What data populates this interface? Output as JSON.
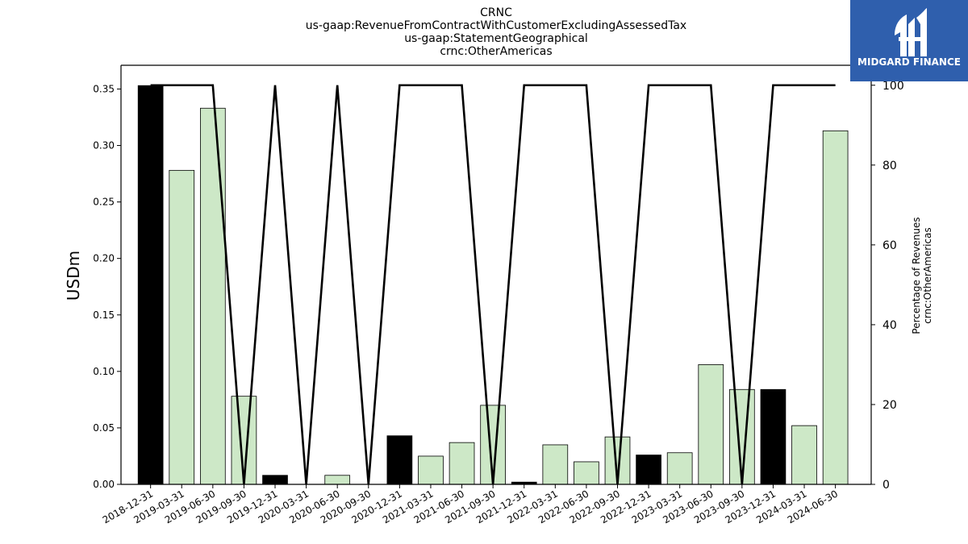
{
  "header": {
    "title_lines": [
      "CRNC",
      "us-gaap:RevenueFromContractWithCustomerExcludingAssessedTax",
      "us-gaap:StatementGeographical",
      "crnc:OtherAmericas"
    ]
  },
  "logo": {
    "text": "MIDGARD FINANCE",
    "icon": "midgard-logo-icon",
    "background": "#2f5fad"
  },
  "chart_data": {
    "type": "bar",
    "categories": [
      "2018-12-31",
      "2019-03-31",
      "2019-06-30",
      "2019-09-30",
      "2019-12-31",
      "2020-03-31",
      "2020-06-30",
      "2020-09-30",
      "2020-12-31",
      "2021-03-31",
      "2021-06-30",
      "2021-09-30",
      "2021-12-31",
      "2022-03-31",
      "2022-06-30",
      "2022-09-30",
      "2022-12-31",
      "2023-03-31",
      "2023-06-30",
      "2023-09-30",
      "2023-12-31",
      "2024-03-31",
      "2024-06-30"
    ],
    "series": [
      {
        "type": "bar",
        "axis": "left",
        "values": [
          0.353,
          0.278,
          0.333,
          0.078,
          0.008,
          0.0,
          0.008,
          0.0,
          0.043,
          0.025,
          0.037,
          0.07,
          0.002,
          0.035,
          0.02,
          0.042,
          0.026,
          0.028,
          0.106,
          0.084,
          0.084,
          0.052,
          0.313
        ],
        "colors": [
          "#000000",
          "#cde8c7",
          "#cde8c7",
          "#cde8c7",
          "#000000",
          "#cde8c7",
          "#cde8c7",
          "#cde8c7",
          "#000000",
          "#cde8c7",
          "#cde8c7",
          "#cde8c7",
          "#000000",
          "#cde8c7",
          "#cde8c7",
          "#cde8c7",
          "#000000",
          "#cde8c7",
          "#cde8c7",
          "#cde8c7",
          "#000000",
          "#cde8c7",
          "#cde8c7"
        ]
      },
      {
        "type": "line",
        "axis": "right",
        "values": [
          100,
          100,
          100,
          0,
          100,
          0,
          100,
          0,
          100,
          100,
          100,
          0,
          100,
          100,
          100,
          0,
          100,
          100,
          100,
          0,
          100,
          100,
          100
        ],
        "color": "#000000"
      }
    ],
    "ylabel": "USDm",
    "y2label_lines": [
      "Percentage of Revenues",
      "crnc:OtherAmericas"
    ],
    "ylim": [
      0,
      0.371
    ],
    "y2lim": [
      0,
      105
    ],
    "yticks": [
      "0.00",
      "0.05",
      "0.10",
      "0.15",
      "0.20",
      "0.25",
      "0.30",
      "0.35"
    ],
    "y2ticks": [
      "0",
      "20",
      "40",
      "60",
      "80",
      "100"
    ],
    "grid": false,
    "legend": "none"
  }
}
